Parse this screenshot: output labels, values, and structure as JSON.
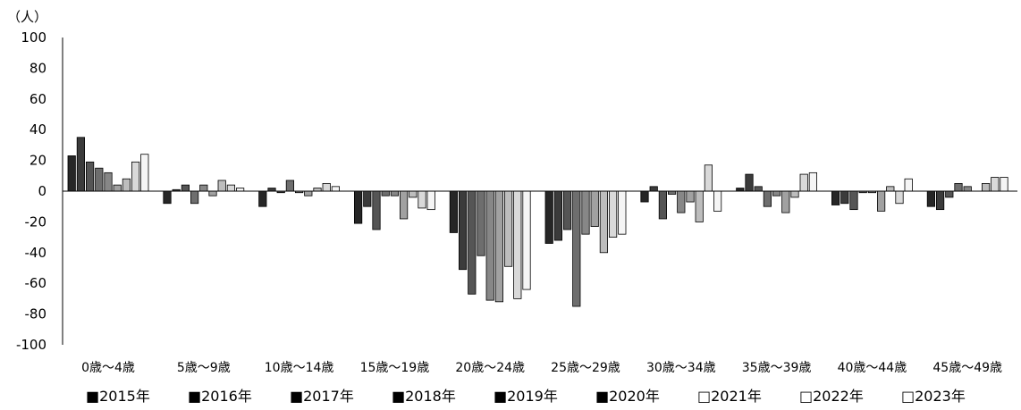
{
  "chart_data": {
    "type": "bar",
    "unit_label": "（人）",
    "categories": [
      "0歳～4歳",
      "5歳～9歳",
      "10歳～14歳",
      "15歳～19歳",
      "20歳～24歳",
      "25歳～29歳",
      "30歳～34歳",
      "35歳～39歳",
      "40歳～44歳",
      "45歳～49歳"
    ],
    "ylim": [
      -100,
      100
    ],
    "yticks": [
      100,
      80,
      60,
      40,
      20,
      0,
      -20,
      -40,
      -60,
      -80,
      -100
    ],
    "legend_position": "bottom",
    "grid": false,
    "series": [
      {
        "name": "■2015年",
        "color": "#262626",
        "values": [
          23,
          -8,
          -10,
          -21,
          -27,
          -34,
          -7,
          2,
          -9,
          -10
        ]
      },
      {
        "name": "■2016年",
        "color": "#3b3b3b",
        "values": [
          35,
          1,
          2,
          -10,
          -51,
          -32,
          3,
          11,
          -8,
          -12
        ]
      },
      {
        "name": "■2017年",
        "color": "#555555",
        "values": [
          19,
          4,
          -1,
          -25,
          -67,
          -25,
          -18,
          3,
          -12,
          -4
        ]
      },
      {
        "name": "■2018年",
        "color": "#6e6e6e",
        "values": [
          15,
          -8,
          7,
          -3,
          -42,
          -75,
          -2,
          -10,
          -1,
          5
        ]
      },
      {
        "name": "■2019年",
        "color": "#878787",
        "values": [
          12,
          4,
          -1,
          -3,
          -71,
          -28,
          -14,
          -3,
          -1,
          3
        ]
      },
      {
        "name": "■2020年",
        "color": "#a1a1a1",
        "values": [
          4,
          -3,
          -3,
          -18,
          -72,
          -23,
          -7,
          -14,
          -13,
          0
        ]
      },
      {
        "name": "□2021年",
        "color": "#bdbdbd",
        "values": [
          8,
          7,
          2,
          -4,
          -49,
          -40,
          -20,
          -4,
          3,
          5
        ]
      },
      {
        "name": "□2022年",
        "color": "#d9d9d9",
        "values": [
          19,
          4,
          5,
          -11,
          -70,
          -30,
          17,
          11,
          -8,
          9
        ]
      },
      {
        "name": "□2023年",
        "color": "#f5f5f5",
        "values": [
          24,
          2,
          3,
          -12,
          -64,
          -28,
          -13,
          12,
          8,
          9
        ]
      }
    ]
  }
}
